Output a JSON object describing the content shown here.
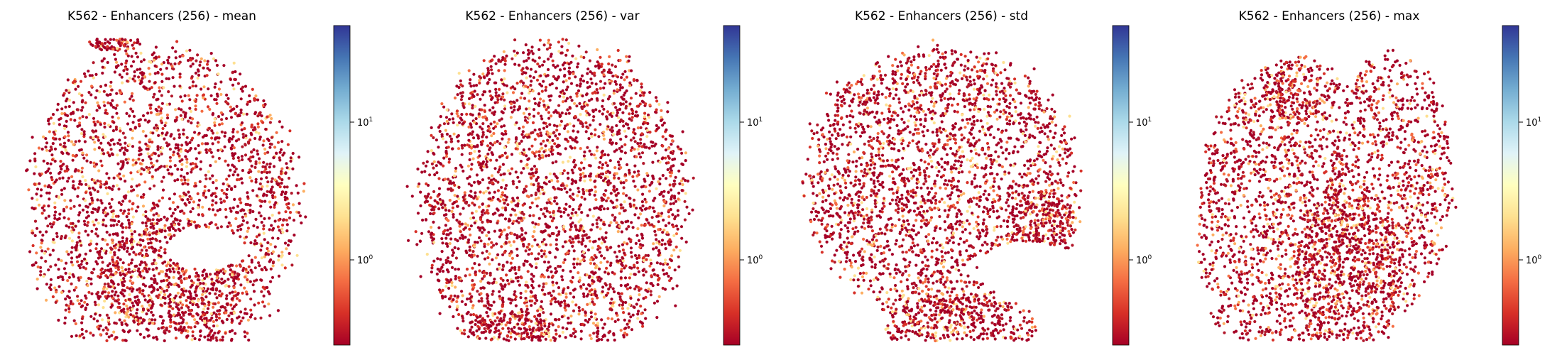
{
  "chart_data": [
    {
      "type": "scatter",
      "title": "K562 - Enhancers (256) - mean",
      "xlabel": "",
      "ylabel": "",
      "colormap": "RdYlBu",
      "color_scale": "log",
      "colorbar_ticks": [
        {
          "value": 1,
          "base": "10",
          "exp": "0"
        },
        {
          "value": 10,
          "base": "10",
          "exp": "1"
        }
      ],
      "colorbar_range": [
        0.25,
        50
      ],
      "dominant_point_color": "#a50026",
      "grid": false
    },
    {
      "type": "scatter",
      "title": "K562 - Enhancers (256) - var",
      "xlabel": "",
      "ylabel": "",
      "colormap": "RdYlBu",
      "color_scale": "log",
      "colorbar_ticks": [
        {
          "value": 1,
          "base": "10",
          "exp": "0"
        },
        {
          "value": 10,
          "base": "10",
          "exp": "1"
        }
      ],
      "colorbar_range": [
        0.25,
        50
      ],
      "dominant_point_color": "#a50026",
      "grid": false
    },
    {
      "type": "scatter",
      "title": "K562 - Enhancers (256) - std",
      "xlabel": "",
      "ylabel": "",
      "colormap": "RdYlBu",
      "color_scale": "log",
      "colorbar_ticks": [
        {
          "value": 1,
          "base": "10",
          "exp": "0"
        },
        {
          "value": 10,
          "base": "10",
          "exp": "1"
        }
      ],
      "colorbar_range": [
        0.25,
        50
      ],
      "dominant_point_color": "#a50026",
      "grid": false
    },
    {
      "type": "scatter",
      "title": "K562 - Enhancers (256) - max",
      "xlabel": "",
      "ylabel": "",
      "colormap": "RdYlBu",
      "color_scale": "log",
      "colorbar_ticks": [
        {
          "value": 1,
          "base": "10",
          "exp": "0"
        },
        {
          "value": 10,
          "base": "10",
          "exp": "1"
        }
      ],
      "colorbar_range": [
        0.25,
        50
      ],
      "dominant_point_color": "#a50026",
      "grid": false
    }
  ]
}
